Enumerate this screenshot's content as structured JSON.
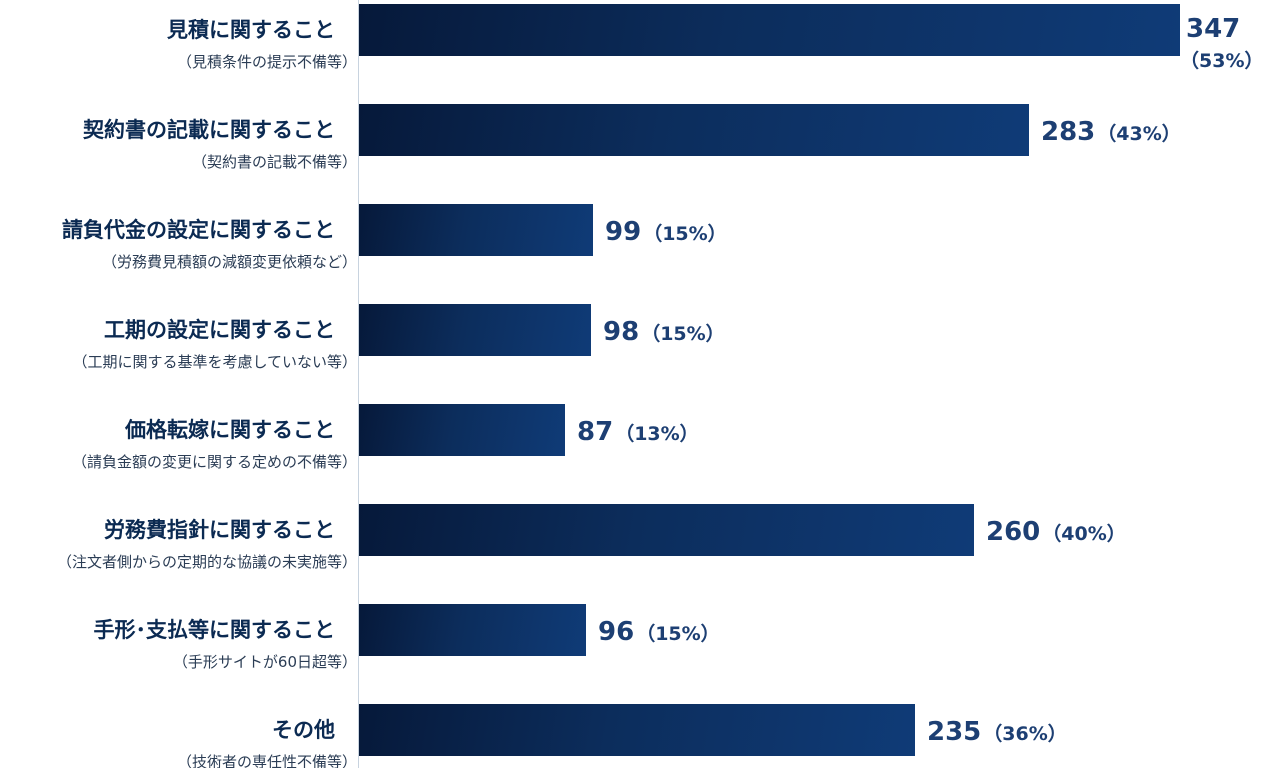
{
  "chart_data": {
    "type": "bar",
    "orientation": "horizontal",
    "categories": [
      {
        "title": "見積に関すること",
        "subtitle": "（見積条件の提示不備等）",
        "value": 347,
        "percent_label": "（53%）"
      },
      {
        "title": "契約書の記載に関すること",
        "subtitle": "（契約書の記載不備等）",
        "value": 283,
        "percent_label": "（43%）"
      },
      {
        "title": "請負代金の設定に関すること",
        "subtitle": "（労務費見積額の減額変更依頼など）",
        "value": 99,
        "percent_label": "（15%）"
      },
      {
        "title": "工期の設定に関すること",
        "subtitle": "（工期に関する基準を考慮していない等）",
        "value": 98,
        "percent_label": "（15%）"
      },
      {
        "title": "価格転嫁に関すること",
        "subtitle": "（請負金額の変更に関する定めの不備等）",
        "value": 87,
        "percent_label": "（13%）"
      },
      {
        "title": "労務費指針に関すること",
        "subtitle": "（注文者側からの定期的な協議の未実施等）",
        "value": 260,
        "percent_label": "（40%）"
      },
      {
        "title": "手形･支払等に関すること",
        "subtitle": "（手形サイトが60日超等）",
        "value": 96,
        "percent_label": "（15%）"
      },
      {
        "title": "その他",
        "subtitle": "（技術者の専任性不備等）",
        "value": 235,
        "percent_label": "（36%）"
      }
    ],
    "xlim": [
      0,
      347
    ],
    "grid": false,
    "bar_color": "#0c2d5c",
    "label_color": "#1d3f73",
    "title_color": "#0b2a52"
  }
}
